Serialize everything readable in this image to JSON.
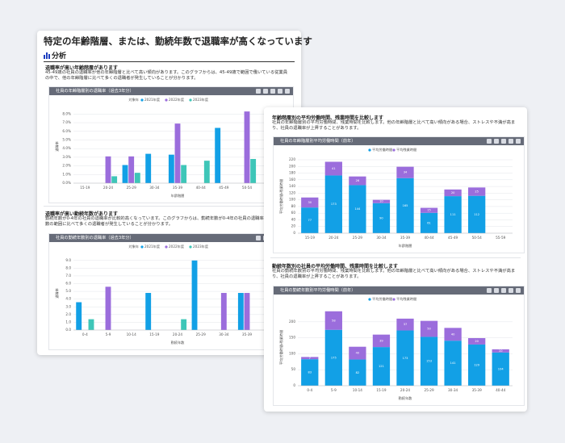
{
  "left_card": {
    "title": "特定の年齢階層、または、勤続年数で退職率が高くなっています",
    "section": "分析",
    "blocks": [
      {
        "heading": "退職率が高い年齢階層があります",
        "text": "45-49歳の社員の退職率が他の年齢階層と比べて高い傾向があります。このグラフからは、45-49歳で範囲で働いている従業員の中で、他の年齢階層に比べて多くの退職者が発生していることが分かります。"
      },
      {
        "heading": "退職率が高い勤続年数があります",
        "text": "勤続年数が0-4年の社員の退職率が比較的高くなっています。このグラフからは、勤続年数が0-4年の社員の退職率が他の勤続年数の範囲に比べて多くの退職者が発生していることが分かります。"
      }
    ]
  },
  "right_card": {
    "blocks": [
      {
        "heading": "年齢階層別の平均労働時間、残業時間を比較します",
        "text": "社員の年齢階層別の平均労働時間、残業時間を比較します。他の年齢階層と比べて高い傾向がある場合、ストレスや不満が高まり、社員の退職率が上昇することがあります。"
      },
      {
        "heading": "勤続年数別の社員の平均労働時間、残業時間を比較します",
        "text": "社員の勤続年数別の平均労働時間、残業時間を比較します。他の年齢階層と比べて高い傾向がある場合、ストレスや不満が高まり、社員の退職率が上昇することがあります。"
      }
    ]
  },
  "chart_data": [
    {
      "type": "bar",
      "title": "社員の年齢階層別の退職率（過去3年分）",
      "legend_title": "対象年",
      "categories": [
        "15-19",
        "20-24",
        "25-29",
        "30-34",
        "35-39",
        "40-44",
        "45-49",
        "50-54",
        "55-59"
      ],
      "series": [
        {
          "name": "2021年度",
          "color": "#12a0e6",
          "values": [
            0,
            0,
            2.1,
            3.4,
            3.3,
            0,
            6.4,
            0,
            0
          ]
        },
        {
          "name": "2022年度",
          "color": "#9b6ddc",
          "values": [
            0,
            3.1,
            3.1,
            0,
            6.9,
            0,
            0,
            8.3,
            0
          ]
        },
        {
          "name": "2023年度",
          "color": "#3ec6b8",
          "values": [
            0,
            0.8,
            1.2,
            0,
            2.1,
            2.6,
            0,
            2.8,
            0
          ]
        }
      ],
      "ylim": [
        0,
        8.5
      ],
      "yticks": [
        {
          "value": 0,
          "label": "0.0%"
        },
        {
          "value": 1,
          "label": "1.0%"
        },
        {
          "value": 2,
          "label": "2.0%"
        },
        {
          "value": 3,
          "label": "3.0%"
        },
        {
          "value": 4,
          "label": "4.0%"
        },
        {
          "value": 5,
          "label": "5.0%"
        },
        {
          "value": 6,
          "label": "6.0%"
        },
        {
          "value": 7,
          "label": "7.0%"
        },
        {
          "value": 8,
          "label": "8.0%"
        }
      ],
      "x_label": "年齢階層",
      "y_label": "退職率",
      "stacked": false,
      "grid": true
    },
    {
      "type": "bar",
      "title": "社員の勤続年数別の退職率（過去3年分）",
      "legend_title": "対象年",
      "categories": [
        "0-4",
        "5-9",
        "10-14",
        "15-19",
        "20-24",
        "25-29",
        "30-34",
        "35-39",
        "40-44"
      ],
      "series": [
        {
          "name": "2021年度",
          "color": "#12a0e6",
          "values": [
            3.6,
            0,
            0,
            4.8,
            0,
            9.0,
            0,
            4.8,
            0
          ]
        },
        {
          "name": "2022年度",
          "color": "#9b6ddc",
          "values": [
            0,
            5.6,
            0,
            0,
            0,
            0,
            4.8,
            4.8,
            0
          ]
        },
        {
          "name": "2023年度",
          "color": "#3ec6b8",
          "values": [
            1.4,
            0,
            0,
            0,
            1.4,
            0,
            0,
            0,
            2.6
          ]
        }
      ],
      "ylim": [
        0,
        9.5
      ],
      "yticks": [
        {
          "value": 0,
          "label": "0.0"
        },
        {
          "value": 1,
          "label": "1.0"
        },
        {
          "value": 2,
          "label": "2.0"
        },
        {
          "value": 3,
          "label": "3.0"
        },
        {
          "value": 4,
          "label": "4.0"
        },
        {
          "value": 5,
          "label": "5.0"
        },
        {
          "value": 6,
          "label": "6.0"
        },
        {
          "value": 7,
          "label": "7.0"
        },
        {
          "value": 8,
          "label": "8.0"
        },
        {
          "value": 9,
          "label": "9.0"
        }
      ],
      "x_label": "勤続年数",
      "y_label": "退職率",
      "stacked": false,
      "grid": true
    },
    {
      "type": "bar",
      "title": "社員の年齢階層別平均労働時間（前年）",
      "categories": [
        "15-19",
        "20-24",
        "25-29",
        "30-34",
        "35-39",
        "40-44",
        "45-49",
        "50-54",
        "55-59"
      ],
      "series": [
        {
          "name": "平均労働時間",
          "color": "#12a0e6",
          "values": [
            77,
            173,
            144,
            90,
            165,
            61,
            111,
            112,
            null
          ]
        },
        {
          "name": "平均残業時間",
          "color": "#9b6ddc",
          "values": [
            30,
            41,
            26,
            10,
            34,
            15,
            20,
            25,
            null
          ]
        }
      ],
      "ylim": [
        0,
        220
      ],
      "yticks": [
        0,
        20,
        40,
        60,
        80,
        100,
        120,
        140,
        160,
        180,
        200,
        220
      ],
      "x_label": "年齢階層",
      "y_label": "平均労働時間・残業時間",
      "stacked": true,
      "grid": true
    },
    {
      "type": "bar",
      "title": "社員の勤続年数別平均労働時間（前年）",
      "categories": [
        "0-4",
        "5-9",
        "10-14",
        "15-19",
        "20-24",
        "25-29",
        "30-34",
        "35-39",
        "40-44"
      ],
      "series": [
        {
          "name": "平均労働時間",
          "color": "#12a0e6",
          "values": [
            83,
            175,
            82,
            121,
            173,
            153,
            141,
            129,
            104
          ]
        },
        {
          "name": "平均残業時間",
          "color": "#9b6ddc",
          "values": [
            7,
            58,
            40,
            39,
            37,
            50,
            40,
            20,
            10
          ]
        }
      ],
      "ylim": [
        0,
        240
      ],
      "yticks": [
        0,
        50,
        100,
        150,
        200
      ],
      "x_label": "勤続年数",
      "y_label": "平均労働時間・残業時間",
      "stacked": true,
      "grid": true
    }
  ]
}
